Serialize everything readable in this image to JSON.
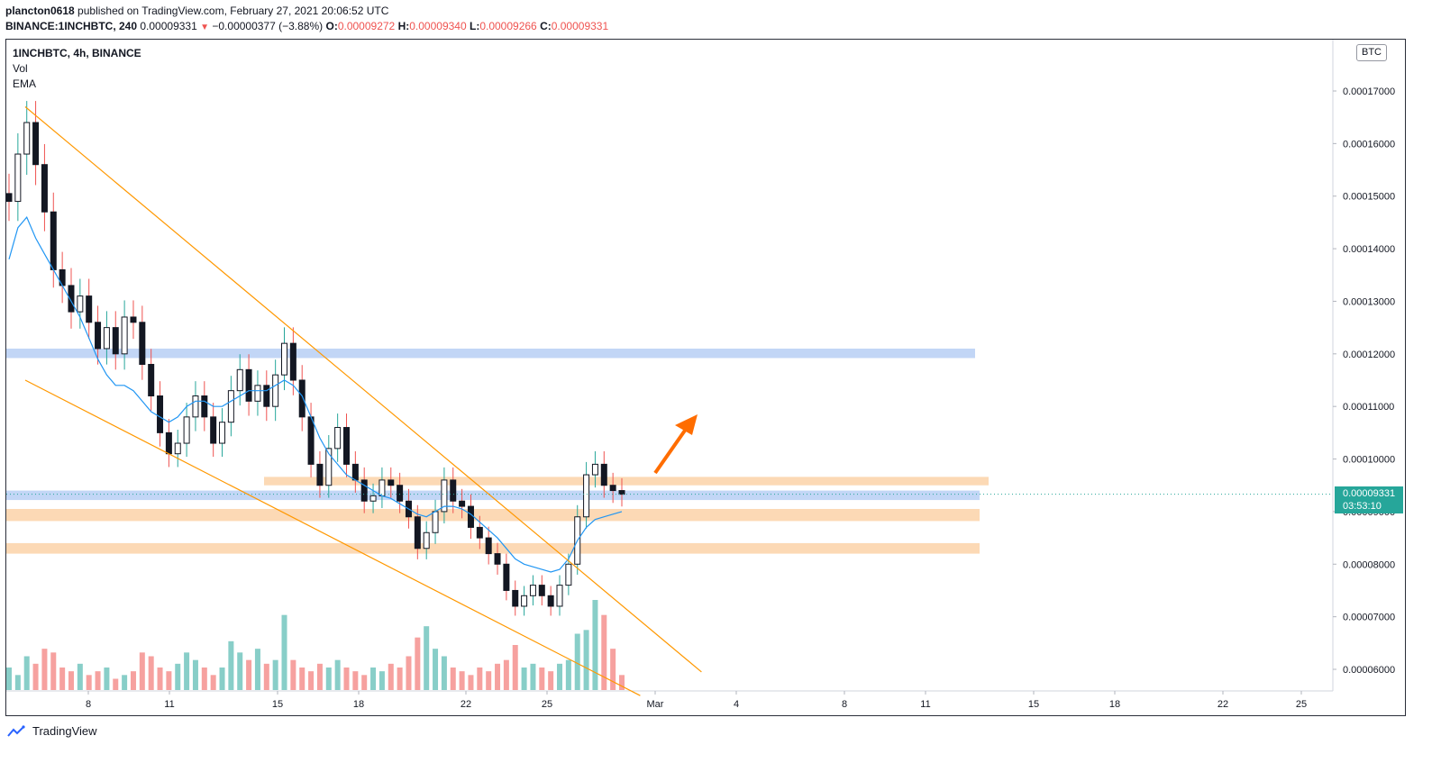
{
  "header": {
    "author": "plancton0618",
    "published_text": "published on TradingView.com, February 27, 2021 20:06:52 UTC",
    "symbol_line": "BINANCE:1INCHBTC, 240",
    "last": "0.00009331",
    "change": "−0.00000377 (−3.88%)",
    "o_label": "O:",
    "o_value": "0.00009272",
    "h_label": "H:",
    "h_value": "0.00009340",
    "l_label": "L:",
    "l_value": "0.00009266",
    "c_label": "C:",
    "c_value": "0.00009331"
  },
  "legend": {
    "symbol": "1INCHBTC, 4h, BINANCE",
    "vol": "Vol",
    "ema": "EMA"
  },
  "currency_badge": "BTC",
  "price_tag": {
    "price": "0.00009331",
    "countdown": "03:53:10"
  },
  "footer": {
    "brand": "TradingView"
  },
  "colors": {
    "up": "#26a69a",
    "down": "#ef5350",
    "candle_body": "#131722",
    "ema": "#2196f3",
    "trendline": "#ff9800",
    "arrow": "#ff6d00",
    "zone_blue": "#bbd2f5",
    "zone_orange": "#fcd5ad"
  },
  "chart_data": {
    "type": "candlestick",
    "symbol": "1INCHBTC",
    "interval": "4h",
    "exchange": "BINANCE",
    "x_ticks": [
      "8",
      "11",
      "15",
      "18",
      "22",
      "25",
      "Mar",
      "4",
      "8",
      "11",
      "15",
      "18",
      "22",
      "25"
    ],
    "y_ticks": [
      "0.00006000",
      "0.00007000",
      "0.00008000",
      "0.00009000",
      "0.00010000",
      "0.00011000",
      "0.00012000",
      "0.00013000",
      "0.00014000",
      "0.00015000",
      "0.00016000",
      "0.00017000"
    ],
    "y_range": [
      5.55e-05,
      1.78e-05
    ],
    "close_path": [
      0.000149,
      0.000158,
      0.000164,
      0.000156,
      0.000147,
      0.000136,
      0.000133,
      0.000128,
      0.000131,
      0.000126,
      0.000121,
      0.000125,
      0.00012,
      0.000127,
      0.000126,
      0.000118,
      0.000112,
      0.000105,
      0.000101,
      0.000103,
      0.000108,
      0.000112,
      0.000108,
      0.000103,
      0.000107,
      0.000113,
      0.000117,
      0.000111,
      0.000114,
      0.00011,
      0.000116,
      0.000122,
      0.000115,
      0.000108,
      9.9e-05,
      9.5e-05,
      0.000102,
      0.000106,
      9.9e-05,
      9.6e-05,
      9.2e-05,
      9.3e-05,
      9.6e-05,
      9.5e-05,
      9.2e-05,
      8.9e-05,
      8.3e-05,
      8.6e-05,
      9e-05,
      9.6e-05,
      9.2e-05,
      9.1e-05,
      8.7e-05,
      8.5e-05,
      8.2e-05,
      8e-05,
      7.5e-05,
      7.2e-05,
      7.4e-05,
      7.6e-05,
      7.4e-05,
      7.2e-05,
      7.6e-05,
      8e-05,
      8.9e-05,
      9.7e-05,
      9.9e-05,
      9.5e-05,
      9.4e-05,
      9.33e-05
    ],
    "ema_path": [
      0.000138,
      0.000144,
      0.000146,
      0.000142,
      0.000139,
      0.000136,
      0.000133,
      0.00013,
      0.000127,
      0.000123,
      0.000119,
      0.000116,
      0.000114,
      0.000114,
      0.000113,
      0.000111,
      0.000109,
      0.000108,
      0.000107,
      0.000108,
      0.00011,
      0.000111,
      0.000111,
      0.00011,
      0.00011,
      0.000111,
      0.000112,
      0.000113,
      0.000113,
      0.000113,
      0.000114,
      0.000115,
      0.000114,
      0.000112,
      0.000108,
      0.000104,
      0.000101,
      9.9e-05,
      9.7e-05,
      9.6e-05,
      9.5e-05,
      9.4e-05,
      9.3e-05,
      9.25e-05,
      9.15e-05,
      9.05e-05,
      8.95e-05,
      8.9e-05,
      9e-05,
      9.1e-05,
      9.1e-05,
      9.05e-05,
      8.95e-05,
      8.8e-05,
      8.65e-05,
      8.5e-05,
      8.3e-05,
      8.1e-05,
      8e-05,
      7.95e-05,
      7.9e-05,
      7.85e-05,
      7.9e-05,
      8.1e-05,
      8.45e-05,
      8.7e-05,
      8.85e-05,
      8.9e-05,
      8.95e-05,
      9e-05
    ],
    "volume_path": [
      0.3,
      0.2,
      0.45,
      0.35,
      0.55,
      0.5,
      0.3,
      0.25,
      0.35,
      0.2,
      0.25,
      0.3,
      0.15,
      0.2,
      0.25,
      0.5,
      0.45,
      0.3,
      0.25,
      0.35,
      0.5,
      0.4,
      0.3,
      0.2,
      0.3,
      0.65,
      0.5,
      0.4,
      0.55,
      0.35,
      0.4,
      1.0,
      0.4,
      0.3,
      0.25,
      0.35,
      0.3,
      0.4,
      0.3,
      0.25,
      0.2,
      0.3,
      0.25,
      0.35,
      0.3,
      0.45,
      0.7,
      0.85,
      0.55,
      0.45,
      0.3,
      0.25,
      0.2,
      0.3,
      0.25,
      0.35,
      0.4,
      0.6,
      0.3,
      0.35,
      0.3,
      0.25,
      0.35,
      0.4,
      0.75,
      0.8,
      1.2,
      1.0,
      0.55,
      0.2
    ],
    "current_price": 9.331e-05,
    "zones": [
      {
        "color": "blue",
        "top": 0.000121,
        "bottom": 0.0001192
      },
      {
        "color": "orange",
        "top": 9.66e-05,
        "bottom": 9.5e-05
      },
      {
        "color": "blue",
        "top": 9.4e-05,
        "bottom": 9.22e-05
      },
      {
        "color": "orange",
        "top": 9.05e-05,
        "bottom": 8.82e-05
      },
      {
        "color": "orange",
        "top": 8.4e-05,
        "bottom": 8.2e-05
      }
    ],
    "trendlines": [
      {
        "from": [
          0.0,
          0.000167
        ],
        "to": [
          1.13,
          5.95e-05
        ]
      },
      {
        "from": [
          0.0,
          0.000115
        ],
        "to": [
          1.03,
          5.5e-05
        ]
      }
    ],
    "grid": false
  }
}
